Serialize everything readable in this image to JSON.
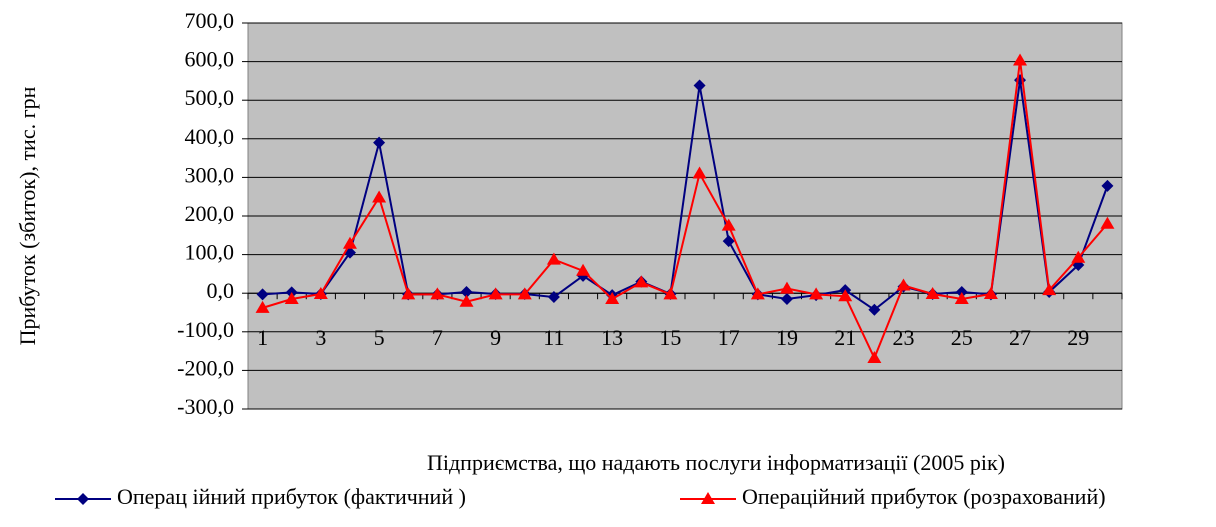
{
  "chart_data": {
    "type": "line",
    "x_label": "Підприємства, що надають послуги інформатизації  (2005 рік)",
    "y_label": "Прибуток (збиток), тис. грн",
    "categories": [
      "1",
      null,
      "3",
      null,
      "5",
      null,
      "7",
      null,
      "9",
      null,
      "11",
      null,
      "13",
      null,
      "15",
      null,
      "17",
      null,
      "19",
      null,
      "21",
      null,
      "23",
      null,
      "25",
      null,
      "27",
      null,
      "29",
      null
    ],
    "series": [
      {
        "name": "Операц ійний прибуток   (фактичний )",
        "color": "#000080",
        "marker": "diamond",
        "values": [
          -3,
          2,
          -2,
          105,
          390,
          -3,
          -3,
          3,
          -2,
          -2,
          -10,
          45,
          -5,
          30,
          -2,
          538,
          135,
          -3,
          -15,
          -5,
          8,
          -43,
          17,
          -2,
          3,
          -3,
          552,
          3,
          73,
          278
        ]
      },
      {
        "name": "Операційний прибуток (розрахований)",
        "color": "#ff0000",
        "marker": "triangle",
        "values": [
          -38,
          -15,
          -2,
          128,
          248,
          -3,
          -3,
          -22,
          -3,
          -3,
          87,
          58,
          -15,
          28,
          -3,
          310,
          175,
          -3,
          12,
          -3,
          -8,
          -168,
          20,
          -2,
          -15,
          -2,
          603,
          8,
          92,
          180
        ]
      }
    ],
    "ylim": [
      -300,
      700
    ],
    "yticks": [
      {
        "value": -300,
        "label": "-300,0"
      },
      {
        "value": -200,
        "label": "-200,0"
      },
      {
        "value": -100,
        "label": "-100,0"
      },
      {
        "value": 0,
        "label": "0,0"
      },
      {
        "value": 100,
        "label": "100,0"
      },
      {
        "value": 200,
        "label": "200,0"
      },
      {
        "value": 300,
        "label": "300,0"
      },
      {
        "value": 400,
        "label": "400,0"
      },
      {
        "value": 500,
        "label": "500,0"
      },
      {
        "value": 600,
        "label": "600,0"
      },
      {
        "value": 700,
        "label": "700,0"
      }
    ],
    "grid": true,
    "plot_background": "#c0c0c0",
    "legend": "bottom"
  }
}
